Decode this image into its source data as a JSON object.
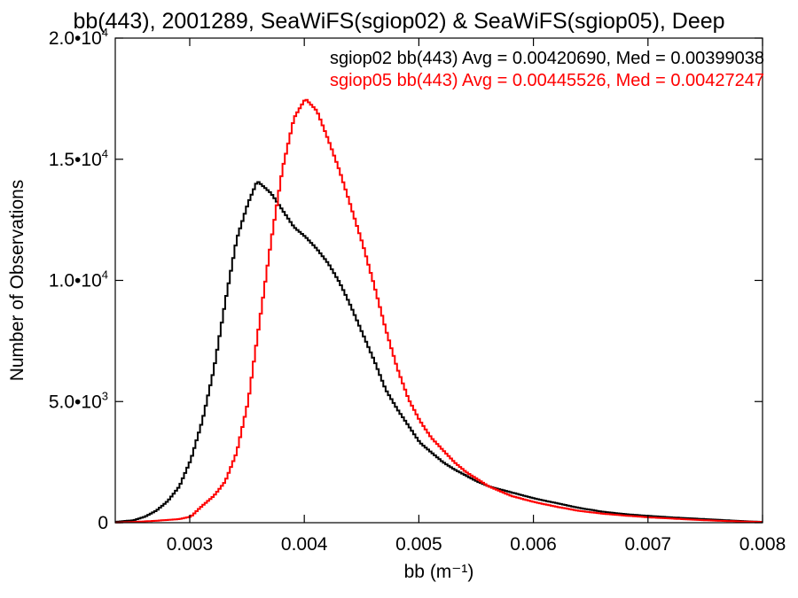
{
  "chart_data": {
    "type": "line",
    "title": "bb(443), 2001289, SeaWiFS(sgiop02) & SeaWiFS(sgiop05), Deep",
    "xlabel": "bb (m⁻¹)",
    "ylabel": "Number of Observations",
    "xlim": [
      0.00235,
      0.008
    ],
    "ylim": [
      0,
      20000
    ],
    "x_ticks": [
      {
        "value": 0.003,
        "label": "0.003"
      },
      {
        "value": 0.004,
        "label": "0.004"
      },
      {
        "value": 0.005,
        "label": "0.005"
      },
      {
        "value": 0.006,
        "label": "0.006"
      },
      {
        "value": 0.007,
        "label": "0.007"
      },
      {
        "value": 0.008,
        "label": "0.008"
      }
    ],
    "y_ticks": [
      {
        "value": 0,
        "mantissa": "0",
        "exp": ""
      },
      {
        "value": 5000,
        "mantissa": "5.0•10",
        "exp": "3"
      },
      {
        "value": 10000,
        "mantissa": "1.0•10",
        "exp": "4"
      },
      {
        "value": 15000,
        "mantissa": "1.5•10",
        "exp": "4"
      },
      {
        "value": 20000,
        "mantissa": "2.0•10",
        "exp": "4"
      }
    ],
    "grid": false,
    "legend_position": "top-right",
    "annotations": [
      {
        "text": "sgiop02 bb(443) Avg = 0.00420690, Med = 0.00399038",
        "color": "#000000"
      },
      {
        "text": "sgiop05 bb(443) Avg = 0.00445526, Med = 0.00427247",
        "color": "#ff0000"
      }
    ],
    "series": [
      {
        "color": "#000000",
        "points": [
          [
            0.00235,
            40
          ],
          [
            0.0025,
            100
          ],
          [
            0.0026,
            250
          ],
          [
            0.0027,
            500
          ],
          [
            0.0028,
            900
          ],
          [
            0.0029,
            1500
          ],
          [
            0.003,
            2600
          ],
          [
            0.0031,
            4200
          ],
          [
            0.0032,
            6300
          ],
          [
            0.0033,
            9100
          ],
          [
            0.0034,
            11700
          ],
          [
            0.0035,
            13200
          ],
          [
            0.00358,
            14100
          ],
          [
            0.0037,
            13600
          ],
          [
            0.0038,
            12900
          ],
          [
            0.0039,
            12200
          ],
          [
            0.004,
            11800
          ],
          [
            0.0041,
            11300
          ],
          [
            0.0042,
            10700
          ],
          [
            0.0043,
            9900
          ],
          [
            0.0044,
            8900
          ],
          [
            0.0045,
            7800
          ],
          [
            0.0046,
            6700
          ],
          [
            0.0047,
            5500
          ],
          [
            0.0048,
            4700
          ],
          [
            0.0049,
            4000
          ],
          [
            0.005,
            3300
          ],
          [
            0.0051,
            2900
          ],
          [
            0.0052,
            2500
          ],
          [
            0.0053,
            2200
          ],
          [
            0.0054,
            1950
          ],
          [
            0.0055,
            1700
          ],
          [
            0.0056,
            1500
          ],
          [
            0.0058,
            1250
          ],
          [
            0.006,
            1000
          ],
          [
            0.0062,
            800
          ],
          [
            0.0064,
            600
          ],
          [
            0.0066,
            450
          ],
          [
            0.0068,
            350
          ],
          [
            0.007,
            280
          ],
          [
            0.0072,
            220
          ],
          [
            0.0074,
            170
          ],
          [
            0.0076,
            120
          ],
          [
            0.0078,
            70
          ],
          [
            0.008,
            30
          ]
        ]
      },
      {
        "color": "#ff0000",
        "points": [
          [
            0.00235,
            10
          ],
          [
            0.0025,
            30
          ],
          [
            0.0027,
            80
          ],
          [
            0.0029,
            150
          ],
          [
            0.003,
            250
          ],
          [
            0.0031,
            700
          ],
          [
            0.0032,
            1100
          ],
          [
            0.0033,
            1700
          ],
          [
            0.0034,
            2900
          ],
          [
            0.0035,
            5000
          ],
          [
            0.0036,
            8300
          ],
          [
            0.0037,
            11600
          ],
          [
            0.0038,
            14600
          ],
          [
            0.0039,
            16700
          ],
          [
            0.004,
            17500
          ],
          [
            0.0041,
            17000
          ],
          [
            0.0042,
            15800
          ],
          [
            0.0043,
            14500
          ],
          [
            0.0044,
            13000
          ],
          [
            0.0045,
            11500
          ],
          [
            0.0046,
            9800
          ],
          [
            0.0047,
            8000
          ],
          [
            0.0048,
            6400
          ],
          [
            0.0049,
            5100
          ],
          [
            0.005,
            4200
          ],
          [
            0.0051,
            3500
          ],
          [
            0.0052,
            3000
          ],
          [
            0.0053,
            2500
          ],
          [
            0.0054,
            2100
          ],
          [
            0.0055,
            1800
          ],
          [
            0.0056,
            1500
          ],
          [
            0.0058,
            1100
          ],
          [
            0.006,
            850
          ],
          [
            0.0062,
            650
          ],
          [
            0.0064,
            480
          ],
          [
            0.0066,
            370
          ],
          [
            0.0068,
            290
          ],
          [
            0.007,
            220
          ],
          [
            0.0072,
            170
          ],
          [
            0.0074,
            120
          ],
          [
            0.0076,
            80
          ],
          [
            0.0078,
            50
          ],
          [
            0.008,
            30
          ]
        ]
      }
    ]
  }
}
